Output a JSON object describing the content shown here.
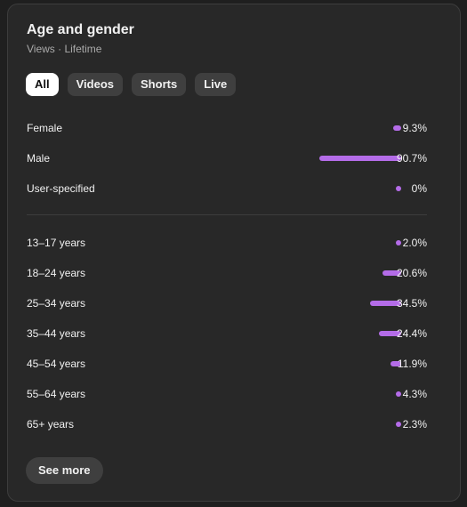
{
  "header": {
    "title": "Age and gender",
    "subtitle": "Views · Lifetime"
  },
  "tabs": [
    {
      "label": "All",
      "active": true
    },
    {
      "label": "Videos",
      "active": false
    },
    {
      "label": "Shorts",
      "active": false
    },
    {
      "label": "Live",
      "active": false
    }
  ],
  "colors": {
    "bar": "#b46ce8",
    "card_background": "#282828",
    "active_tab": "#ffffff"
  },
  "gender": [
    {
      "label": "Female",
      "percent": 9.3,
      "value_text": "9.3%"
    },
    {
      "label": "Male",
      "percent": 90.7,
      "value_text": "90.7%"
    },
    {
      "label": "User-specified",
      "percent": 0,
      "value_text": "0%"
    }
  ],
  "age": [
    {
      "label": "13–17 years",
      "percent": 2.0,
      "value_text": "2.0%"
    },
    {
      "label": "18–24 years",
      "percent": 20.6,
      "value_text": "20.6%"
    },
    {
      "label": "25–34 years",
      "percent": 34.5,
      "value_text": "34.5%"
    },
    {
      "label": "35–44 years",
      "percent": 24.4,
      "value_text": "24.4%"
    },
    {
      "label": "45–54 years",
      "percent": 11.9,
      "value_text": "11.9%"
    },
    {
      "label": "55–64 years",
      "percent": 4.3,
      "value_text": "4.3%"
    },
    {
      "label": "65+ years",
      "percent": 2.3,
      "value_text": "2.3%"
    }
  ],
  "footer": {
    "see_more_label": "See more"
  }
}
